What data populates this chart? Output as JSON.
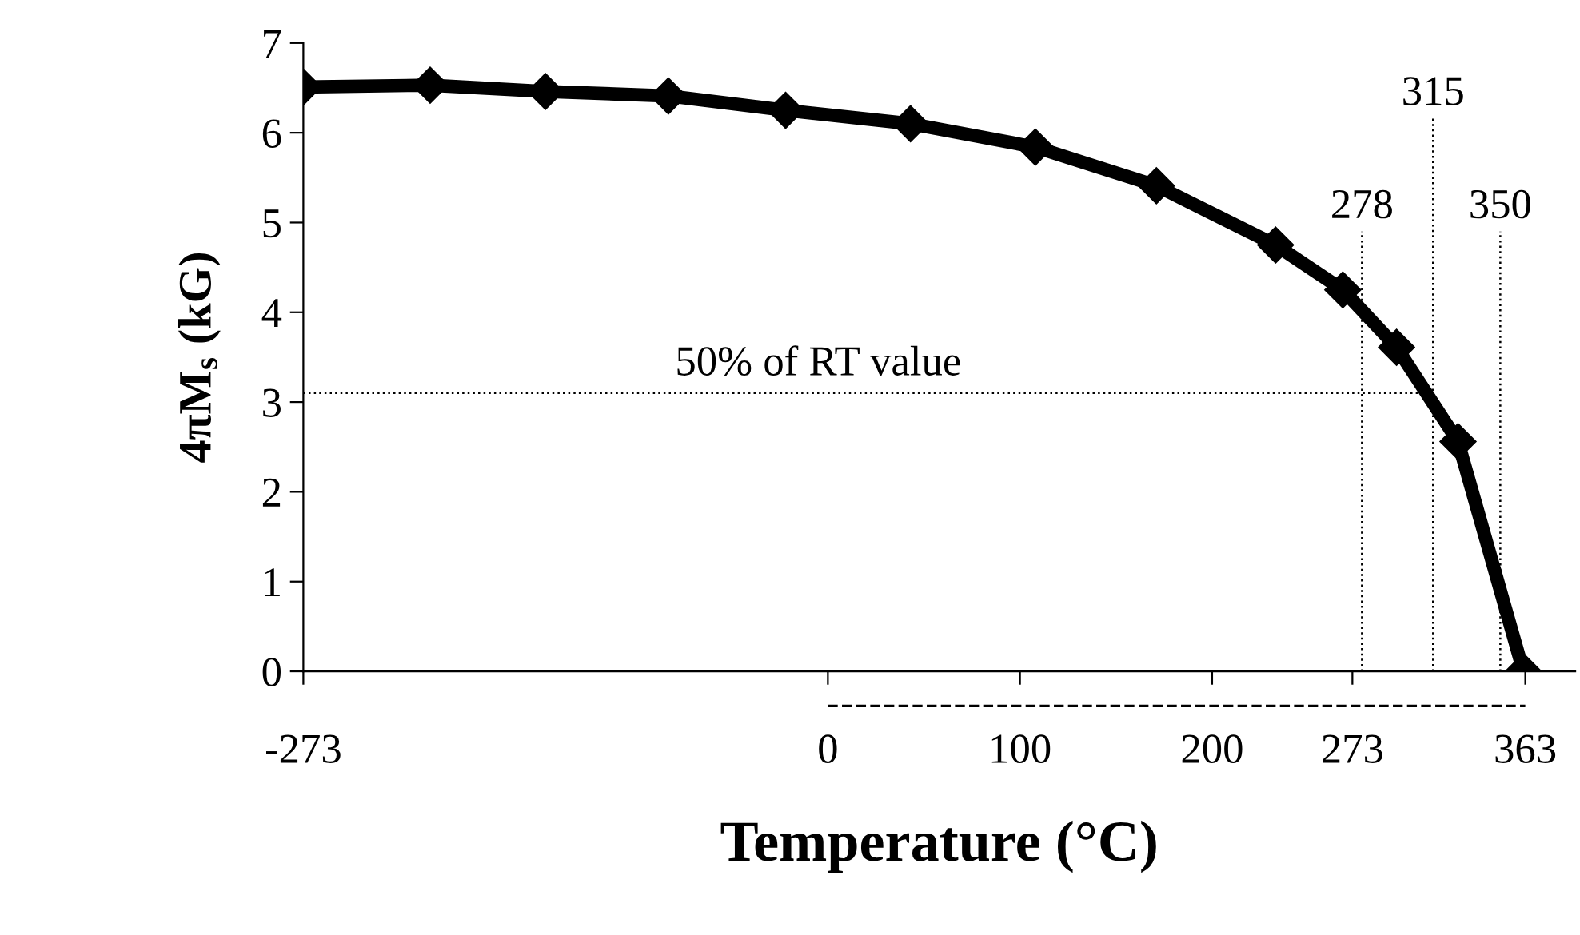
{
  "chart_data": {
    "type": "line",
    "xlabel": "Temperature (°C)",
    "ylabel": "4πM$_{s}$ (kG)",
    "x": [
      -273,
      -207,
      -147,
      -83,
      -22,
      43,
      108,
      171,
      233,
      268,
      296,
      328,
      362
    ],
    "series": [
      {
        "color": "#000000",
        "values": [
          6.51,
          6.53,
          6.46,
          6.41,
          6.25,
          6.1,
          5.84,
          5.41,
          4.75,
          4.25,
          3.61,
          2.56,
          0
        ]
      }
    ],
    "marker": "diamond",
    "line_style": "solid",
    "xlim": [
      -273,
      389
    ],
    "xticks": [
      -273,
      0,
      100,
      200,
      273,
      363
    ],
    "ylim": [
      0,
      7
    ],
    "yticks": [
      0,
      1,
      2,
      3,
      4,
      5,
      6,
      7
    ],
    "ref_lines": [
      {
        "axis": "y",
        "value": 3.1,
        "label": "50% of RT value",
        "line_style": "dotted"
      },
      {
        "axis": "x",
        "value": 278,
        "label": "278",
        "line_style": "dotted"
      },
      {
        "axis": "x",
        "value": 315,
        "label": "315",
        "line_style": "dotted"
      },
      {
        "axis": "x",
        "value": 350,
        "label": "350",
        "line_style": "dotted"
      }
    ],
    "grid": false,
    "legend": false
  }
}
